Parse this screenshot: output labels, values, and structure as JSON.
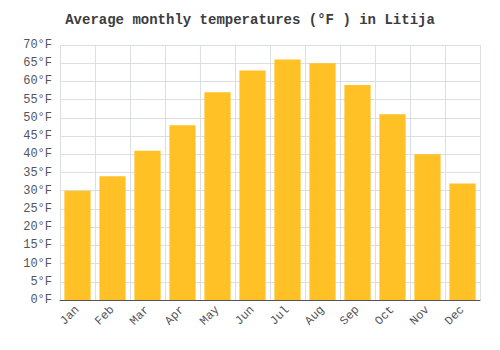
{
  "chart_data": {
    "type": "bar",
    "title": "Average monthly temperatures (°F ) in Litija",
    "categories": [
      "Jan",
      "Feb",
      "Mar",
      "Apr",
      "May",
      "Jun",
      "Jul",
      "Aug",
      "Sep",
      "Oct",
      "Nov",
      "Dec"
    ],
    "values": [
      30,
      34,
      41,
      48,
      57,
      63,
      66,
      65,
      59,
      51,
      40,
      32
    ],
    "color": "#FFC125",
    "ylim": [
      0,
      70
    ],
    "yticks": [
      {
        "value": 0,
        "label": "0°F"
      },
      {
        "value": 5,
        "label": "5°F"
      },
      {
        "value": 10,
        "label": "10°F"
      },
      {
        "value": 15,
        "label": "15°F"
      },
      {
        "value": 20,
        "label": "20°F"
      },
      {
        "value": 25,
        "label": "25°F"
      },
      {
        "value": 30,
        "label": "30°F"
      },
      {
        "value": 35,
        "label": "35°F"
      },
      {
        "value": 40,
        "label": "40°F"
      },
      {
        "value": 45,
        "label": "45°F"
      },
      {
        "value": 50,
        "label": "50°F"
      },
      {
        "value": 55,
        "label": "55°F"
      },
      {
        "value": 60,
        "label": "60°F"
      },
      {
        "value": 65,
        "label": "65°F"
      },
      {
        "value": 70,
        "label": "70°F"
      }
    ],
    "grid": true
  }
}
